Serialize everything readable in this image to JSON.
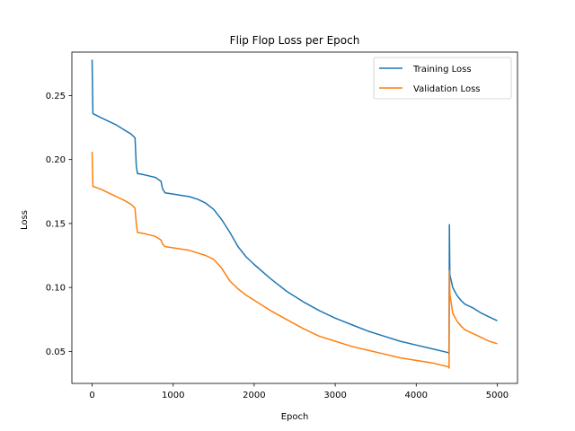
{
  "chart_data": {
    "type": "line",
    "title": "Flip Flop Loss per Epoch",
    "xlabel": "Epoch",
    "ylabel": "Loss",
    "xlim": [
      -250,
      5250
    ],
    "ylim": [
      0.025,
      0.284
    ],
    "xticks": [
      0,
      1000,
      2000,
      3000,
      4000,
      5000
    ],
    "yticks": [
      0.05,
      0.1,
      0.15,
      0.2,
      0.25
    ],
    "ytick_labels": [
      "0.05",
      "0.10",
      "0.15",
      "0.20",
      "0.25"
    ],
    "grid": false,
    "legend_position": "top-right",
    "series": [
      {
        "name": "Training Loss",
        "color": "#1f77b4",
        "points": [
          [
            0,
            0.278
          ],
          [
            10,
            0.236
          ],
          [
            100,
            0.233
          ],
          [
            200,
            0.23
          ],
          [
            300,
            0.227
          ],
          [
            400,
            0.223
          ],
          [
            480,
            0.22
          ],
          [
            530,
            0.217
          ],
          [
            545,
            0.195
          ],
          [
            560,
            0.189
          ],
          [
            650,
            0.188
          ],
          [
            780,
            0.186
          ],
          [
            850,
            0.183
          ],
          [
            870,
            0.177
          ],
          [
            900,
            0.174
          ],
          [
            1000,
            0.173
          ],
          [
            1100,
            0.172
          ],
          [
            1200,
            0.171
          ],
          [
            1300,
            0.169
          ],
          [
            1400,
            0.166
          ],
          [
            1500,
            0.161
          ],
          [
            1600,
            0.153
          ],
          [
            1700,
            0.143
          ],
          [
            1800,
            0.132
          ],
          [
            1900,
            0.124
          ],
          [
            2000,
            0.118
          ],
          [
            2200,
            0.107
          ],
          [
            2400,
            0.097
          ],
          [
            2600,
            0.089
          ],
          [
            2800,
            0.082
          ],
          [
            3000,
            0.076
          ],
          [
            3200,
            0.071
          ],
          [
            3400,
            0.066
          ],
          [
            3600,
            0.062
          ],
          [
            3800,
            0.058
          ],
          [
            4000,
            0.055
          ],
          [
            4200,
            0.052
          ],
          [
            4400,
            0.049
          ],
          [
            4405,
            0.048
          ],
          [
            4410,
            0.149
          ],
          [
            4415,
            0.11
          ],
          [
            4450,
            0.1
          ],
          [
            4500,
            0.094
          ],
          [
            4550,
            0.09
          ],
          [
            4600,
            0.087
          ],
          [
            4700,
            0.084
          ],
          [
            4800,
            0.08
          ],
          [
            4900,
            0.077
          ],
          [
            5000,
            0.074
          ]
        ]
      },
      {
        "name": "Validation Loss",
        "color": "#ff7f0e",
        "points": [
          [
            0,
            0.206
          ],
          [
            10,
            0.179
          ],
          [
            100,
            0.177
          ],
          [
            200,
            0.174
          ],
          [
            300,
            0.171
          ],
          [
            400,
            0.168
          ],
          [
            480,
            0.165
          ],
          [
            530,
            0.162
          ],
          [
            545,
            0.15
          ],
          [
            560,
            0.143
          ],
          [
            650,
            0.142
          ],
          [
            780,
            0.14
          ],
          [
            850,
            0.137
          ],
          [
            870,
            0.134
          ],
          [
            900,
            0.132
          ],
          [
            1000,
            0.131
          ],
          [
            1100,
            0.13
          ],
          [
            1200,
            0.129
          ],
          [
            1300,
            0.127
          ],
          [
            1400,
            0.125
          ],
          [
            1500,
            0.122
          ],
          [
            1600,
            0.115
          ],
          [
            1700,
            0.105
          ],
          [
            1800,
            0.099
          ],
          [
            1900,
            0.094
          ],
          [
            2000,
            0.09
          ],
          [
            2200,
            0.082
          ],
          [
            2400,
            0.075
          ],
          [
            2600,
            0.068
          ],
          [
            2800,
            0.062
          ],
          [
            3000,
            0.058
          ],
          [
            3200,
            0.054
          ],
          [
            3400,
            0.051
          ],
          [
            3600,
            0.048
          ],
          [
            3800,
            0.045
          ],
          [
            4000,
            0.043
          ],
          [
            4200,
            0.041
          ],
          [
            4400,
            0.038
          ],
          [
            4405,
            0.037
          ],
          [
            4410,
            0.113
          ],
          [
            4415,
            0.095
          ],
          [
            4450,
            0.08
          ],
          [
            4500,
            0.074
          ],
          [
            4550,
            0.07
          ],
          [
            4600,
            0.067
          ],
          [
            4700,
            0.064
          ],
          [
            4800,
            0.061
          ],
          [
            4900,
            0.058
          ],
          [
            5000,
            0.056
          ]
        ]
      }
    ]
  }
}
